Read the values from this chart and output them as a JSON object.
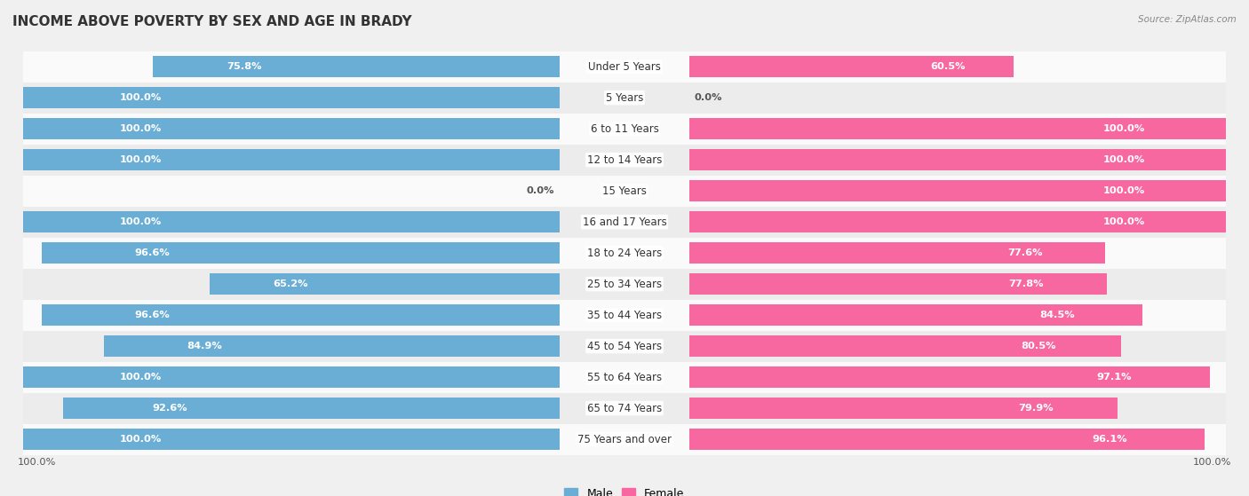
{
  "title": "INCOME ABOVE POVERTY BY SEX AND AGE IN BRADY",
  "source": "Source: ZipAtlas.com",
  "categories": [
    "Under 5 Years",
    "5 Years",
    "6 to 11 Years",
    "12 to 14 Years",
    "15 Years",
    "16 and 17 Years",
    "18 to 24 Years",
    "25 to 34 Years",
    "35 to 44 Years",
    "45 to 54 Years",
    "55 to 64 Years",
    "65 to 74 Years",
    "75 Years and over"
  ],
  "male_values": [
    75.8,
    100.0,
    100.0,
    100.0,
    0.0,
    100.0,
    96.6,
    65.2,
    96.6,
    84.9,
    100.0,
    92.6,
    100.0
  ],
  "female_values": [
    60.5,
    0.0,
    100.0,
    100.0,
    100.0,
    100.0,
    77.6,
    77.8,
    84.5,
    80.5,
    97.1,
    79.9,
    96.1
  ],
  "male_color": "#6aaed6",
  "female_color": "#f768a1",
  "female_zero_color": "#f9b8d3",
  "male_zero_color": "#b8d8ed",
  "male_label": "Male",
  "female_label": "Female",
  "bg_color": "#f0f0f0",
  "row_even_color": "#fafafa",
  "row_odd_color": "#ececec",
  "max_val": 100.0,
  "bar_height": 0.68,
  "title_fontsize": 11,
  "label_fontsize": 8.5,
  "value_fontsize": 8.2,
  "legend_fontsize": 9,
  "bottom_label": "100.0%"
}
